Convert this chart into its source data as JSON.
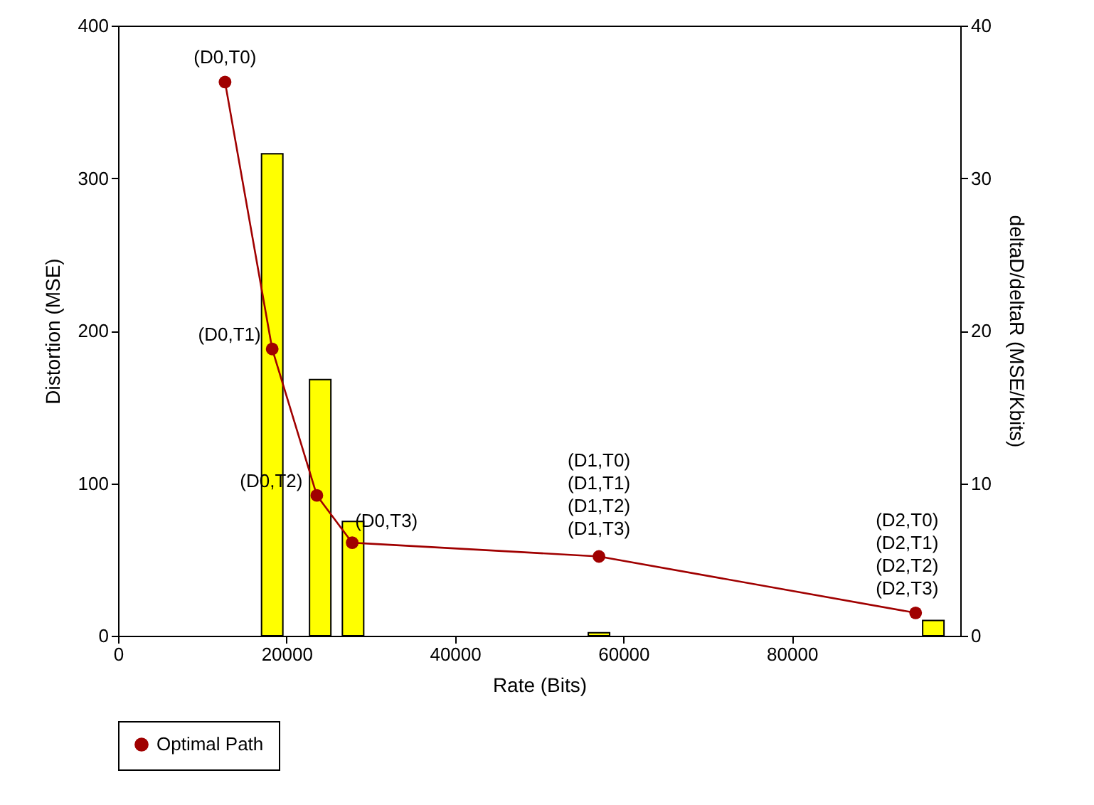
{
  "chart_data": {
    "type": "line",
    "xlabel": "Rate (Bits)",
    "ylabel": "Distortion (MSE)",
    "y2label": "deltaD/deltaR (MSE/Kbits)",
    "xlim": [
      0,
      100000
    ],
    "xticks": [
      0,
      20000,
      40000,
      60000,
      80000
    ],
    "ylim": [
      0,
      400
    ],
    "yticks": [
      0,
      100,
      200,
      300,
      400
    ],
    "y2lim": [
      0,
      40
    ],
    "y2ticks": [
      0,
      10,
      20,
      30,
      40
    ],
    "series": [
      {
        "type": "bar",
        "axis": "y2",
        "color": "#ffff00",
        "x": [
          18300,
          24000,
          27900,
          57100,
          96800
        ],
        "values": [
          31.6,
          16.8,
          7.5,
          0.2,
          1.0
        ]
      },
      {
        "name": "Optimal Path",
        "color": "#a00000",
        "x": [
          12700,
          18300,
          23600,
          27800,
          57100,
          94700
        ],
        "values": [
          363,
          188,
          92,
          61,
          52,
          15
        ]
      }
    ],
    "annotations": [
      {
        "text": "(D0,T0)",
        "x": 12700,
        "y": 363
      },
      {
        "text": "(D0,T1)",
        "x": 18300,
        "y": 188
      },
      {
        "text": "(D0,T2)",
        "x": 23600,
        "y": 92
      },
      {
        "text": "(D0,T3)",
        "x": 27800,
        "y": 61
      },
      {
        "text": "(D1,T0)\n(D1,T1)\n(D1,T2)\n(D1,T3)",
        "x": 57100,
        "y": 52
      },
      {
        "text": "(D2,T0)\n(D2,T1)\n(D2,T2)\n(D2,T3)",
        "x": 94700,
        "y": 15
      }
    ],
    "marker": "circle",
    "line_style": "solid",
    "grid": false,
    "legend": "bottom left"
  }
}
